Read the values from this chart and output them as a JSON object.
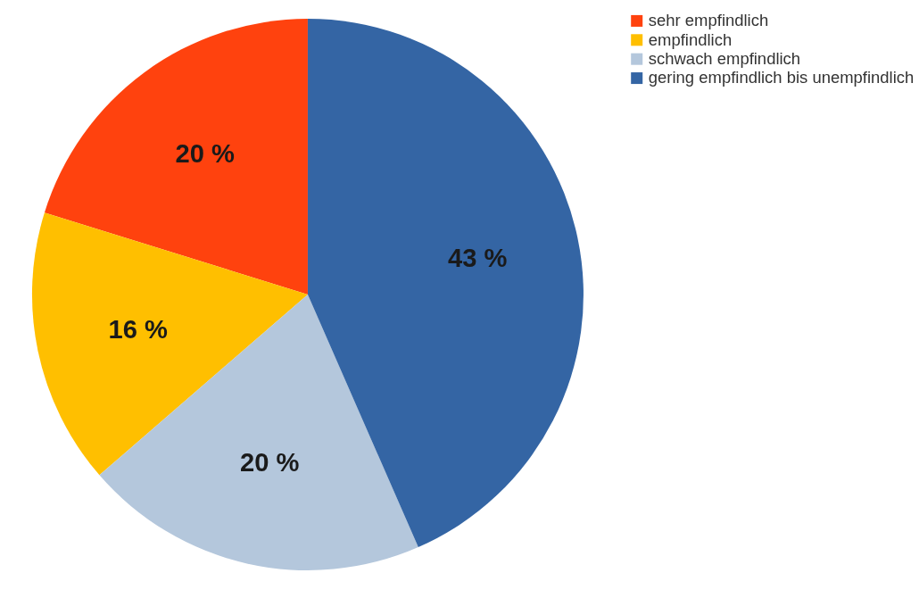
{
  "chart_data": {
    "type": "pie",
    "categories": [
      "sehr empfindlich",
      "empfindlich",
      "schwach empfindlich",
      "gering empfindlich bis unempfindlich"
    ],
    "values": [
      20,
      16,
      20,
      43
    ],
    "value_labels": [
      "20 %",
      "16 %",
      "20 %",
      "43 %"
    ],
    "colors": [
      "#ff420e",
      "#ffbf00",
      "#b4c7dc",
      "#3465a4"
    ],
    "legend": "right"
  }
}
